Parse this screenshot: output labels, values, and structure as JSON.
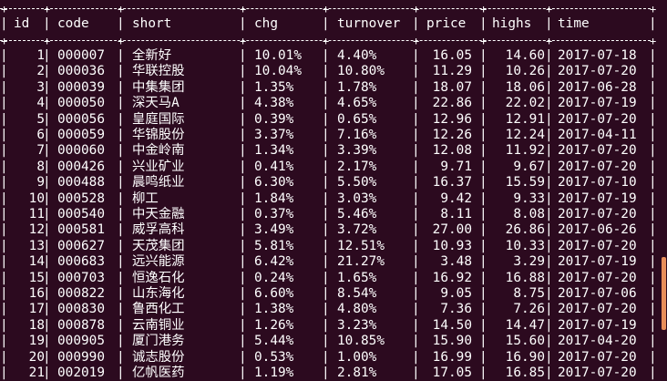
{
  "table": {
    "headers": [
      "id",
      "code",
      "short",
      "chg",
      "turnover",
      "price",
      "highs",
      "time"
    ],
    "rows": [
      [
        "1",
        "000007",
        "全新好",
        "10.01%",
        "4.40%",
        "16.05",
        "14.60",
        "2017-07-18"
      ],
      [
        "2",
        "000036",
        "华联控股",
        "10.04%",
        "10.80%",
        "11.29",
        "10.26",
        "2017-07-20"
      ],
      [
        "3",
        "000039",
        "中集集团",
        "1.35%",
        "1.78%",
        "18.07",
        "18.06",
        "2017-06-28"
      ],
      [
        "4",
        "000050",
        "深天马A",
        "4.38%",
        "4.65%",
        "22.86",
        "22.02",
        "2017-07-19"
      ],
      [
        "5",
        "000056",
        "皇庭国际",
        "0.39%",
        "0.65%",
        "12.96",
        "12.91",
        "2017-07-20"
      ],
      [
        "6",
        "000059",
        "华锦股份",
        "3.37%",
        "7.16%",
        "12.26",
        "12.24",
        "2017-04-11"
      ],
      [
        "7",
        "000060",
        "中金岭南",
        "1.34%",
        "3.39%",
        "12.08",
        "11.92",
        "2017-07-20"
      ],
      [
        "8",
        "000426",
        "兴业矿业",
        "0.41%",
        "2.17%",
        "9.71",
        "9.67",
        "2017-07-20"
      ],
      [
        "9",
        "000488",
        "晨鸣纸业",
        "6.30%",
        "5.50%",
        "16.37",
        "15.59",
        "2017-07-10"
      ],
      [
        "10",
        "000528",
        "柳工",
        "1.84%",
        "3.03%",
        "9.42",
        "9.33",
        "2017-07-19"
      ],
      [
        "11",
        "000540",
        "中天金融",
        "0.37%",
        "5.46%",
        "8.11",
        "8.08",
        "2017-07-20"
      ],
      [
        "12",
        "000581",
        "威孚高科",
        "3.49%",
        "3.72%",
        "27.00",
        "26.86",
        "2017-06-26"
      ],
      [
        "13",
        "000627",
        "天茂集团",
        "5.81%",
        "12.51%",
        "10.93",
        "10.33",
        "2017-07-20"
      ],
      [
        "14",
        "000683",
        "远兴能源",
        "6.42%",
        "21.27%",
        "3.48",
        "3.29",
        "2017-07-19"
      ],
      [
        "15",
        "000703",
        "恒逸石化",
        "0.24%",
        "1.65%",
        "16.92",
        "16.88",
        "2017-07-20"
      ],
      [
        "16",
        "000822",
        "山东海化",
        "6.60%",
        "8.54%",
        "9.05",
        "8.75",
        "2017-07-06"
      ],
      [
        "17",
        "000830",
        "鲁西化工",
        "1.38%",
        "4.80%",
        "7.36",
        "7.26",
        "2017-07-20"
      ],
      [
        "18",
        "000878",
        "云南铜业",
        "1.26%",
        "3.23%",
        "14.50",
        "14.47",
        "2017-07-19"
      ],
      [
        "19",
        "000905",
        "厦门港务",
        "5.44%",
        "10.85%",
        "15.90",
        "15.60",
        "2017-04-20"
      ],
      [
        "20",
        "000990",
        "诚志股份",
        "0.53%",
        "1.00%",
        "16.99",
        "16.90",
        "2017-07-20"
      ],
      [
        "21",
        "002019",
        "亿帆医药",
        "1.19%",
        "2.81%",
        "17.05",
        "16.85",
        "2017-07-20"
      ]
    ]
  },
  "colors": {
    "background": "#2c0a1f",
    "text": "#ffffff",
    "scrollbar": "#e88e5a"
  }
}
